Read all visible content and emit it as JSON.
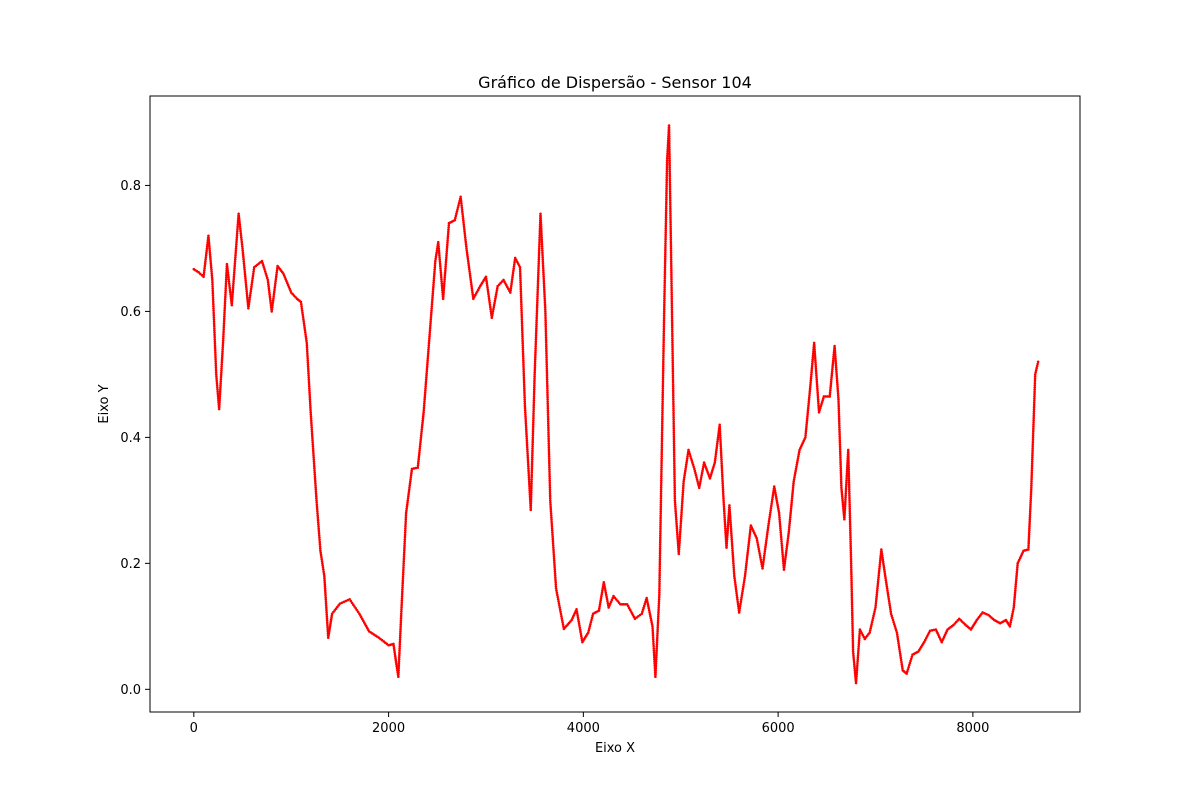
{
  "chart_data": {
    "type": "scatter",
    "title": "Gráfico de Dispersão - Sensor 104",
    "xlabel": "Eixo X",
    "ylabel": "Eixo Y",
    "xlim": [
      -450,
      9100
    ],
    "ylim": [
      -0.036,
      0.942
    ],
    "xticks": [
      0,
      2000,
      4000,
      6000,
      8000
    ],
    "yticks": [
      0.0,
      0.2,
      0.4,
      0.6,
      0.8
    ],
    "grid": false,
    "marker_color": "#ff0000",
    "series": [
      {
        "keypoints": [
          [
            0,
            0.667
          ],
          [
            50,
            0.662
          ],
          [
            100,
            0.655
          ],
          [
            150,
            0.72
          ],
          [
            190,
            0.65
          ],
          [
            230,
            0.5
          ],
          [
            260,
            0.445
          ],
          [
            300,
            0.55
          ],
          [
            340,
            0.675
          ],
          [
            390,
            0.61
          ],
          [
            460,
            0.755
          ],
          [
            500,
            0.7
          ],
          [
            560,
            0.605
          ],
          [
            620,
            0.67
          ],
          [
            700,
            0.68
          ],
          [
            760,
            0.65
          ],
          [
            800,
            0.6
          ],
          [
            860,
            0.672
          ],
          [
            920,
            0.66
          ],
          [
            1000,
            0.63
          ],
          [
            1060,
            0.62
          ],
          [
            1100,
            0.615
          ],
          [
            1160,
            0.55
          ],
          [
            1200,
            0.44
          ],
          [
            1260,
            0.3
          ],
          [
            1300,
            0.22
          ],
          [
            1340,
            0.18
          ],
          [
            1380,
            0.082
          ],
          [
            1420,
            0.12
          ],
          [
            1500,
            0.136
          ],
          [
            1600,
            0.143
          ],
          [
            1700,
            0.12
          ],
          [
            1800,
            0.092
          ],
          [
            1900,
            0.082
          ],
          [
            2000,
            0.07
          ],
          [
            2050,
            0.072
          ],
          [
            2080,
            0.04
          ],
          [
            2100,
            0.02
          ],
          [
            2130,
            0.12
          ],
          [
            2180,
            0.28
          ],
          [
            2240,
            0.35
          ],
          [
            2300,
            0.352
          ],
          [
            2360,
            0.44
          ],
          [
            2420,
            0.56
          ],
          [
            2480,
            0.68
          ],
          [
            2510,
            0.71
          ],
          [
            2560,
            0.62
          ],
          [
            2620,
            0.74
          ],
          [
            2680,
            0.745
          ],
          [
            2740,
            0.782
          ],
          [
            2800,
            0.7
          ],
          [
            2870,
            0.62
          ],
          [
            2940,
            0.64
          ],
          [
            3000,
            0.655
          ],
          [
            3060,
            0.59
          ],
          [
            3120,
            0.64
          ],
          [
            3180,
            0.65
          ],
          [
            3250,
            0.63
          ],
          [
            3300,
            0.685
          ],
          [
            3350,
            0.67
          ],
          [
            3400,
            0.45
          ],
          [
            3460,
            0.285
          ],
          [
            3500,
            0.5
          ],
          [
            3560,
            0.755
          ],
          [
            3610,
            0.6
          ],
          [
            3660,
            0.3
          ],
          [
            3720,
            0.16
          ],
          [
            3800,
            0.096
          ],
          [
            3880,
            0.11
          ],
          [
            3930,
            0.127
          ],
          [
            3990,
            0.075
          ],
          [
            4050,
            0.09
          ],
          [
            4100,
            0.12
          ],
          [
            4160,
            0.125
          ],
          [
            4210,
            0.17
          ],
          [
            4260,
            0.13
          ],
          [
            4310,
            0.148
          ],
          [
            4380,
            0.135
          ],
          [
            4450,
            0.135
          ],
          [
            4530,
            0.112
          ],
          [
            4600,
            0.12
          ],
          [
            4650,
            0.145
          ],
          [
            4710,
            0.1
          ],
          [
            4740,
            0.02
          ],
          [
            4780,
            0.15
          ],
          [
            4830,
            0.6
          ],
          [
            4860,
            0.84
          ],
          [
            4880,
            0.895
          ],
          [
            4900,
            0.7
          ],
          [
            4940,
            0.3
          ],
          [
            4980,
            0.215
          ],
          [
            5030,
            0.33
          ],
          [
            5080,
            0.38
          ],
          [
            5140,
            0.35
          ],
          [
            5190,
            0.32
          ],
          [
            5240,
            0.36
          ],
          [
            5300,
            0.335
          ],
          [
            5350,
            0.36
          ],
          [
            5400,
            0.42
          ],
          [
            5440,
            0.3
          ],
          [
            5470,
            0.225
          ],
          [
            5500,
            0.292
          ],
          [
            5550,
            0.18
          ],
          [
            5600,
            0.122
          ],
          [
            5660,
            0.18
          ],
          [
            5720,
            0.26
          ],
          [
            5780,
            0.24
          ],
          [
            5840,
            0.192
          ],
          [
            5900,
            0.26
          ],
          [
            5960,
            0.322
          ],
          [
            6010,
            0.28
          ],
          [
            6060,
            0.19
          ],
          [
            6110,
            0.25
          ],
          [
            6160,
            0.33
          ],
          [
            6220,
            0.38
          ],
          [
            6280,
            0.4
          ],
          [
            6330,
            0.48
          ],
          [
            6370,
            0.55
          ],
          [
            6420,
            0.44
          ],
          [
            6470,
            0.465
          ],
          [
            6530,
            0.465
          ],
          [
            6580,
            0.545
          ],
          [
            6620,
            0.46
          ],
          [
            6650,
            0.32
          ],
          [
            6680,
            0.27
          ],
          [
            6720,
            0.38
          ],
          [
            6750,
            0.2
          ],
          [
            6770,
            0.06
          ],
          [
            6800,
            0.01
          ],
          [
            6840,
            0.095
          ],
          [
            6890,
            0.08
          ],
          [
            6940,
            0.09
          ],
          [
            7000,
            0.13
          ],
          [
            7060,
            0.222
          ],
          [
            7100,
            0.18
          ],
          [
            7160,
            0.12
          ],
          [
            7220,
            0.09
          ],
          [
            7280,
            0.03
          ],
          [
            7320,
            0.025
          ],
          [
            7380,
            0.055
          ],
          [
            7440,
            0.06
          ],
          [
            7500,
            0.075
          ],
          [
            7560,
            0.093
          ],
          [
            7620,
            0.095
          ],
          [
            7680,
            0.075
          ],
          [
            7740,
            0.095
          ],
          [
            7800,
            0.102
          ],
          [
            7860,
            0.112
          ],
          [
            7920,
            0.103
          ],
          [
            7980,
            0.095
          ],
          [
            8040,
            0.11
          ],
          [
            8100,
            0.122
          ],
          [
            8160,
            0.118
          ],
          [
            8220,
            0.11
          ],
          [
            8280,
            0.105
          ],
          [
            8340,
            0.11
          ],
          [
            8380,
            0.1
          ],
          [
            8420,
            0.13
          ],
          [
            8460,
            0.2
          ],
          [
            8520,
            0.22
          ],
          [
            8570,
            0.222
          ],
          [
            8600,
            0.32
          ],
          [
            8640,
            0.5
          ],
          [
            8670,
            0.52
          ]
        ]
      }
    ]
  }
}
